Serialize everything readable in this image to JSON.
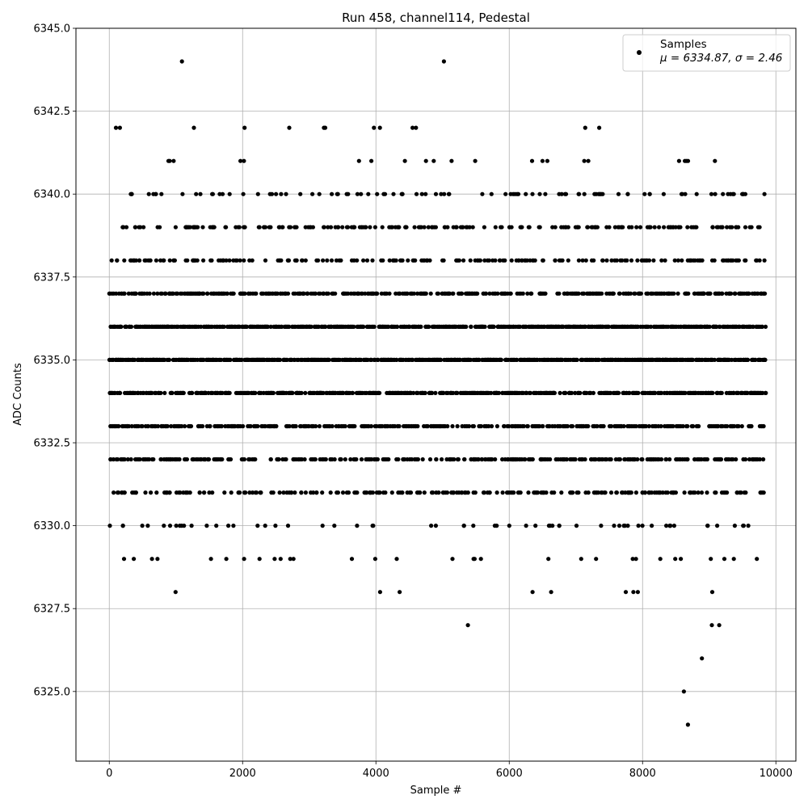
{
  "chart_data": {
    "type": "scatter",
    "title": "Run 458, channel114, Pedestal",
    "xlabel": "Sample #",
    "ylabel": "ADC Counts",
    "xlim": [
      -500,
      10300
    ],
    "ylim": [
      6322.9,
      6345.0
    ],
    "xticks": [
      0,
      2000,
      4000,
      6000,
      8000,
      10000
    ],
    "xtick_labels": [
      "0",
      "2000",
      "4000",
      "6000",
      "8000",
      "10000"
    ],
    "yticks": [
      6325.0,
      6327.5,
      6330.0,
      6332.5,
      6335.0,
      6337.5,
      6340.0,
      6342.5,
      6345.0
    ],
    "ytick_labels": [
      "6325.0",
      "6327.5",
      "6330.0",
      "6332.5",
      "6335.0",
      "6337.5",
      "6340.0",
      "6342.5",
      "6345.0"
    ],
    "grid": true,
    "legend_position": "top-right",
    "marker_color": "#000000",
    "series": [
      {
        "name": "Samples",
        "stats": "μ = 6334.87, σ = 2.46",
        "sample_count": 9850,
        "level_values": [
          6324,
          6325,
          6326,
          6327,
          6328,
          6329,
          6330,
          6331,
          6332,
          6333,
          6334,
          6335,
          6336,
          6337,
          6338,
          6339,
          6340,
          6341,
          6342,
          6344
        ],
        "x_range": [
          0,
          9850
        ],
        "points": [
          [
            1090,
            6344
          ],
          [
            5020,
            6344
          ],
          [
            100,
            6342
          ],
          [
            160,
            6342
          ],
          [
            1270,
            6342
          ],
          [
            2030,
            6342
          ],
          [
            2700,
            6342
          ],
          [
            3220,
            6342
          ],
          [
            3240,
            6342
          ],
          [
            3970,
            6342
          ],
          [
            4060,
            6342
          ],
          [
            4550,
            6342
          ],
          [
            4600,
            6342
          ],
          [
            7140,
            6342
          ],
          [
            7350,
            6342
          ],
          [
            5380,
            6327
          ],
          [
            9040,
            6327
          ],
          [
            9150,
            6327
          ],
          [
            8890,
            6326
          ],
          [
            8620,
            6325
          ],
          [
            8680,
            6324
          ]
        ]
      }
    ]
  }
}
